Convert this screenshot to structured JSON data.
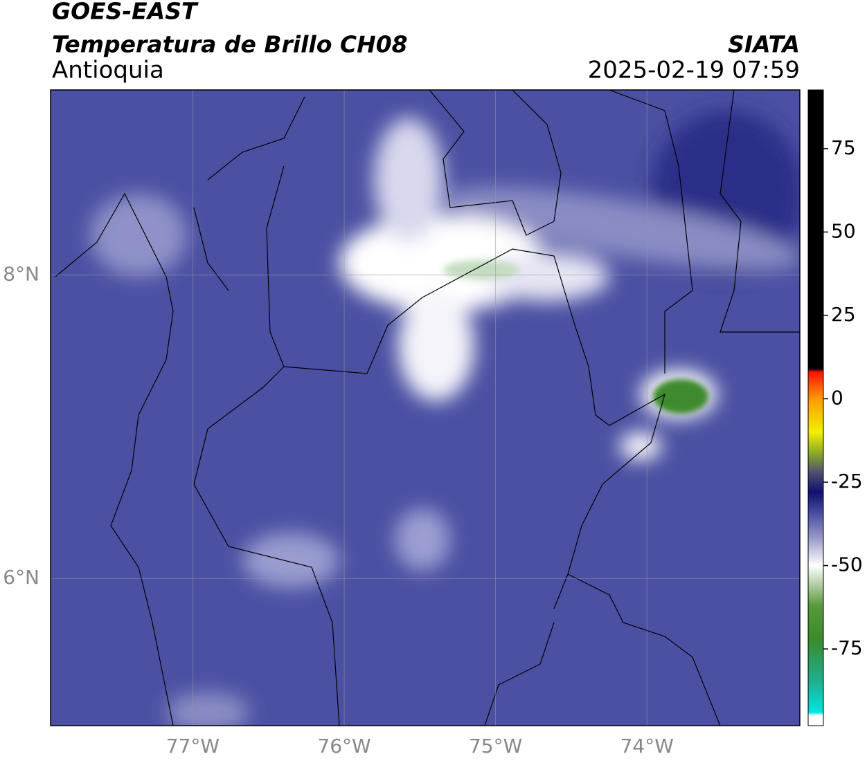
{
  "header": {
    "title": "GOES-EAST",
    "subtitle": "Temperatura de Brillo CH08",
    "region": "Antioquia",
    "source": "SIATA",
    "datetime": "2025-02-19 07:59"
  },
  "map": {
    "xlim": [
      -77.94,
      -72.99
    ],
    "ylim": [
      5.03,
      9.22
    ],
    "xticks": [
      {
        "value": -77,
        "label": "77°W"
      },
      {
        "value": -76,
        "label": "76°W"
      },
      {
        "value": -75,
        "label": "75°W"
      },
      {
        "value": -74,
        "label": "74°W"
      }
    ],
    "yticks": [
      {
        "value": 8,
        "label": "8°N"
      },
      {
        "value": 6,
        "label": "6°N"
      }
    ],
    "grid": true
  },
  "colorbar": {
    "lim": [
      -98,
      92.6
    ],
    "ticks": [
      75,
      50,
      25,
      0,
      -25,
      -50,
      -75
    ],
    "stops": [
      {
        "value": -98,
        "color": "#ffffff"
      },
      {
        "value": -95,
        "color": "#ffffff"
      },
      {
        "value": -94,
        "color": "#00e5e0"
      },
      {
        "value": -85,
        "color": "#20b090"
      },
      {
        "value": -72,
        "color": "#3a8a2a"
      },
      {
        "value": -62,
        "color": "#5a9a3a"
      },
      {
        "value": -54,
        "color": "#c8dcc0"
      },
      {
        "value": -50,
        "color": "#ffffff"
      },
      {
        "value": -42,
        "color": "#9a9cc8"
      },
      {
        "value": -35,
        "color": "#5054a6"
      },
      {
        "value": -28,
        "color": "#101070"
      },
      {
        "value": -22,
        "color": "#505070"
      },
      {
        "value": -17,
        "color": "#80a030"
      },
      {
        "value": -10,
        "color": "#f0f000"
      },
      {
        "value": 0,
        "color": "#ff9a00"
      },
      {
        "value": 8,
        "color": "#ff1000"
      },
      {
        "value": 9,
        "color": "#000000"
      },
      {
        "value": 92.6,
        "color": "#000000"
      }
    ]
  }
}
